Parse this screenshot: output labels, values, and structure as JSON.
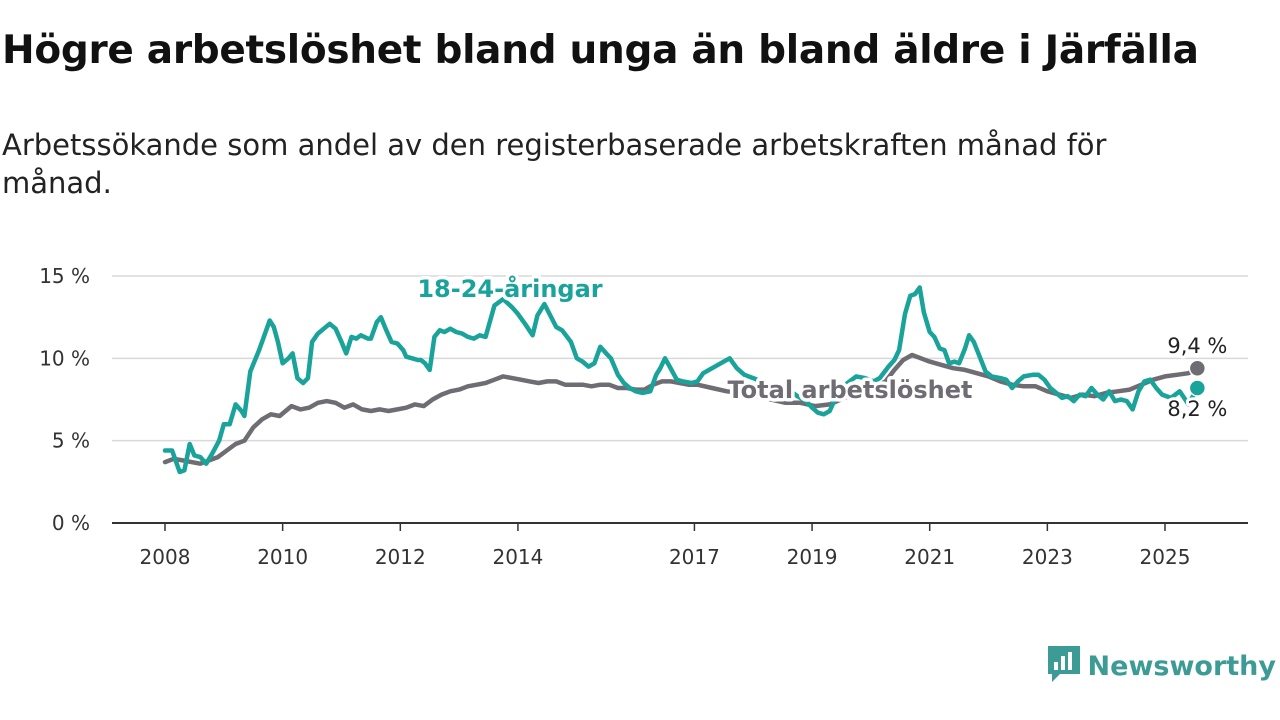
{
  "title": "Högre arbetslöshet bland unga än bland äldre i Järfälla",
  "subtitle": "Arbetssökande som andel av den registerbaserade arbetskraften månad för månad.",
  "brand": {
    "name": "Newsworthy",
    "icon": "bar-chart-logo-icon",
    "color": "#3d9b96"
  },
  "chart_data": {
    "type": "line",
    "title": "Högre arbetslöshet bland unga än bland äldre i Järfälla",
    "subtitle": "Arbetssökande som andel av den registerbaserade arbetskraften månad för månad.",
    "x_unit": "year",
    "xlim": [
      2007.1,
      2026.55
    ],
    "ylim": [
      0,
      15
    ],
    "grid": true,
    "yticks": [
      {
        "value": 0,
        "label": "0 %"
      },
      {
        "value": 5,
        "label": "5 %"
      },
      {
        "value": 10,
        "label": "10 %"
      },
      {
        "value": 15,
        "label": "15 %"
      }
    ],
    "xticks": [
      {
        "value": 2008,
        "label": "2008"
      },
      {
        "value": 2010,
        "label": "2010"
      },
      {
        "value": 2012,
        "label": "2012"
      },
      {
        "value": 2014,
        "label": "2014"
      },
      {
        "value": 2017,
        "label": "2017"
      },
      {
        "value": 2019,
        "label": "2019"
      },
      {
        "value": 2021,
        "label": "2021"
      },
      {
        "value": 2023,
        "label": "2023"
      },
      {
        "value": 2025,
        "label": "2025"
      }
    ],
    "series": [
      {
        "name": "18-24-åringar",
        "color": "#1aa39a",
        "end_label": "8,2 %",
        "points": [
          [
            2008.0,
            4.4
          ],
          [
            2008.12,
            4.4
          ],
          [
            2008.25,
            3.1
          ],
          [
            2008.33,
            3.2
          ],
          [
            2008.42,
            4.8
          ],
          [
            2008.5,
            4.1
          ],
          [
            2008.6,
            4.0
          ],
          [
            2008.7,
            3.6
          ],
          [
            2008.8,
            4.2
          ],
          [
            2008.92,
            5.0
          ],
          [
            2009.0,
            6.0
          ],
          [
            2009.1,
            6.0
          ],
          [
            2009.2,
            7.2
          ],
          [
            2009.3,
            6.8
          ],
          [
            2009.35,
            6.5
          ],
          [
            2009.45,
            9.2
          ],
          [
            2009.6,
            10.5
          ],
          [
            2009.7,
            11.5
          ],
          [
            2009.78,
            12.3
          ],
          [
            2009.85,
            11.9
          ],
          [
            2009.92,
            11.0
          ],
          [
            2010.0,
            9.7
          ],
          [
            2010.1,
            10.0
          ],
          [
            2010.17,
            10.3
          ],
          [
            2010.25,
            8.8
          ],
          [
            2010.35,
            8.5
          ],
          [
            2010.43,
            8.8
          ],
          [
            2010.5,
            11.0
          ],
          [
            2010.6,
            11.5
          ],
          [
            2010.7,
            11.8
          ],
          [
            2010.8,
            12.1
          ],
          [
            2010.9,
            11.8
          ],
          [
            2011.0,
            11.0
          ],
          [
            2011.08,
            10.3
          ],
          [
            2011.17,
            11.3
          ],
          [
            2011.25,
            11.2
          ],
          [
            2011.33,
            11.4
          ],
          [
            2011.45,
            11.2
          ],
          [
            2011.5,
            11.2
          ],
          [
            2011.6,
            12.2
          ],
          [
            2011.67,
            12.5
          ],
          [
            2011.75,
            11.8
          ],
          [
            2011.85,
            11.0
          ],
          [
            2011.95,
            10.9
          ],
          [
            2012.05,
            10.5
          ],
          [
            2012.1,
            10.1
          ],
          [
            2012.2,
            10.0
          ],
          [
            2012.3,
            9.9
          ],
          [
            2012.35,
            9.9
          ],
          [
            2012.42,
            9.7
          ],
          [
            2012.5,
            9.3
          ],
          [
            2012.58,
            11.3
          ],
          [
            2012.67,
            11.7
          ],
          [
            2012.75,
            11.6
          ],
          [
            2012.85,
            11.8
          ],
          [
            2012.95,
            11.6
          ],
          [
            2013.05,
            11.5
          ],
          [
            2013.15,
            11.3
          ],
          [
            2013.25,
            11.2
          ],
          [
            2013.35,
            11.4
          ],
          [
            2013.45,
            11.3
          ],
          [
            2013.6,
            13.2
          ],
          [
            2013.75,
            13.6
          ],
          [
            2013.9,
            13.1
          ],
          [
            2014.0,
            12.7
          ],
          [
            2014.12,
            12.1
          ],
          [
            2014.25,
            11.4
          ],
          [
            2014.33,
            12.6
          ],
          [
            2014.45,
            13.3
          ],
          [
            2014.55,
            12.6
          ],
          [
            2014.65,
            11.9
          ],
          [
            2014.75,
            11.7
          ],
          [
            2014.9,
            11.0
          ],
          [
            2015.0,
            10.0
          ],
          [
            2015.1,
            9.8
          ],
          [
            2015.2,
            9.5
          ],
          [
            2015.3,
            9.7
          ],
          [
            2015.4,
            10.7
          ],
          [
            2015.5,
            10.3
          ],
          [
            2015.58,
            10.0
          ],
          [
            2015.7,
            9.0
          ],
          [
            2015.8,
            8.5
          ],
          [
            2015.9,
            8.2
          ],
          [
            2016.0,
            8.0
          ],
          [
            2016.12,
            7.9
          ],
          [
            2016.25,
            8.0
          ],
          [
            2016.35,
            9.0
          ],
          [
            2016.42,
            9.4
          ],
          [
            2016.5,
            10.0
          ],
          [
            2016.58,
            9.5
          ],
          [
            2016.7,
            8.7
          ],
          [
            2016.8,
            8.6
          ],
          [
            2016.95,
            8.5
          ],
          [
            2017.05,
            8.6
          ],
          [
            2017.15,
            9.1
          ],
          [
            2017.3,
            9.4
          ],
          [
            2017.5,
            9.8
          ],
          [
            2017.6,
            10.0
          ],
          [
            2017.72,
            9.4
          ],
          [
            2017.85,
            9.0
          ],
          [
            2018.0,
            8.8
          ],
          [
            2018.2,
            8.5
          ],
          [
            2018.4,
            8.2
          ],
          [
            2018.6,
            8.1
          ],
          [
            2018.75,
            7.7
          ],
          [
            2018.9,
            7.4
          ],
          [
            2019.0,
            7.0
          ],
          [
            2019.1,
            6.7
          ],
          [
            2019.2,
            6.6
          ],
          [
            2019.3,
            6.8
          ],
          [
            2019.4,
            7.6
          ],
          [
            2019.5,
            8.1
          ],
          [
            2019.6,
            8.5
          ],
          [
            2019.75,
            8.9
          ],
          [
            2019.9,
            8.8
          ],
          [
            2020.05,
            8.6
          ],
          [
            2020.15,
            8.8
          ],
          [
            2020.3,
            9.5
          ],
          [
            2020.4,
            9.9
          ],
          [
            2020.48,
            10.5
          ],
          [
            2020.58,
            12.7
          ],
          [
            2020.67,
            13.8
          ],
          [
            2020.75,
            13.9
          ],
          [
            2020.83,
            14.3
          ],
          [
            2020.9,
            12.8
          ],
          [
            2021.0,
            11.6
          ],
          [
            2021.08,
            11.3
          ],
          [
            2021.17,
            10.6
          ],
          [
            2021.25,
            10.5
          ],
          [
            2021.33,
            9.7
          ],
          [
            2021.42,
            9.8
          ],
          [
            2021.5,
            9.7
          ],
          [
            2021.6,
            10.6
          ],
          [
            2021.67,
            11.4
          ],
          [
            2021.75,
            11.0
          ],
          [
            2021.85,
            10.1
          ],
          [
            2021.95,
            9.2
          ],
          [
            2022.05,
            8.9
          ],
          [
            2022.2,
            8.8
          ],
          [
            2022.3,
            8.7
          ],
          [
            2022.4,
            8.2
          ],
          [
            2022.5,
            8.6
          ],
          [
            2022.6,
            8.9
          ],
          [
            2022.75,
            9.0
          ],
          [
            2022.85,
            9.0
          ],
          [
            2022.95,
            8.7
          ],
          [
            2023.05,
            8.2
          ],
          [
            2023.15,
            7.9
          ],
          [
            2023.25,
            7.6
          ],
          [
            2023.35,
            7.7
          ],
          [
            2023.45,
            7.4
          ],
          [
            2023.55,
            7.8
          ],
          [
            2023.65,
            7.7
          ],
          [
            2023.75,
            8.2
          ],
          [
            2023.85,
            7.8
          ],
          [
            2023.95,
            7.5
          ],
          [
            2024.05,
            8.0
          ],
          [
            2024.15,
            7.4
          ],
          [
            2024.25,
            7.5
          ],
          [
            2024.35,
            7.4
          ],
          [
            2024.45,
            6.9
          ],
          [
            2024.55,
            8.0
          ],
          [
            2024.65,
            8.6
          ],
          [
            2024.75,
            8.7
          ],
          [
            2024.85,
            8.2
          ],
          [
            2024.95,
            7.8
          ],
          [
            2025.1,
            7.6
          ],
          [
            2025.25,
            8.0
          ],
          [
            2025.4,
            7.2
          ],
          [
            2025.55,
            8.2
          ]
        ]
      },
      {
        "name": "Total arbetslöshet",
        "color": "#6f6d73",
        "end_label": "9,4 %",
        "points": [
          [
            2008.0,
            3.7
          ],
          [
            2008.15,
            3.9
          ],
          [
            2008.3,
            3.8
          ],
          [
            2008.45,
            3.7
          ],
          [
            2008.6,
            3.6
          ],
          [
            2008.75,
            3.8
          ],
          [
            2008.9,
            4.0
          ],
          [
            2009.05,
            4.4
          ],
          [
            2009.2,
            4.8
          ],
          [
            2009.35,
            5.0
          ],
          [
            2009.5,
            5.8
          ],
          [
            2009.65,
            6.3
          ],
          [
            2009.8,
            6.6
          ],
          [
            2009.95,
            6.5
          ],
          [
            2010.05,
            6.8
          ],
          [
            2010.15,
            7.1
          ],
          [
            2010.3,
            6.9
          ],
          [
            2010.45,
            7.0
          ],
          [
            2010.6,
            7.3
          ],
          [
            2010.75,
            7.4
          ],
          [
            2010.9,
            7.3
          ],
          [
            2011.05,
            7.0
          ],
          [
            2011.2,
            7.2
          ],
          [
            2011.35,
            6.9
          ],
          [
            2011.5,
            6.8
          ],
          [
            2011.65,
            6.9
          ],
          [
            2011.8,
            6.8
          ],
          [
            2011.95,
            6.9
          ],
          [
            2012.1,
            7.0
          ],
          [
            2012.25,
            7.2
          ],
          [
            2012.4,
            7.1
          ],
          [
            2012.55,
            7.5
          ],
          [
            2012.7,
            7.8
          ],
          [
            2012.85,
            8.0
          ],
          [
            2013.0,
            8.1
          ],
          [
            2013.15,
            8.3
          ],
          [
            2013.3,
            8.4
          ],
          [
            2013.45,
            8.5
          ],
          [
            2013.6,
            8.7
          ],
          [
            2013.75,
            8.9
          ],
          [
            2013.9,
            8.8
          ],
          [
            2014.05,
            8.7
          ],
          [
            2014.2,
            8.6
          ],
          [
            2014.35,
            8.5
          ],
          [
            2014.5,
            8.6
          ],
          [
            2014.65,
            8.6
          ],
          [
            2014.8,
            8.4
          ],
          [
            2014.95,
            8.4
          ],
          [
            2015.1,
            8.4
          ],
          [
            2015.25,
            8.3
          ],
          [
            2015.4,
            8.4
          ],
          [
            2015.55,
            8.4
          ],
          [
            2015.7,
            8.2
          ],
          [
            2015.85,
            8.2
          ],
          [
            2016.0,
            8.1
          ],
          [
            2016.15,
            8.1
          ],
          [
            2016.3,
            8.4
          ],
          [
            2016.45,
            8.6
          ],
          [
            2016.6,
            8.6
          ],
          [
            2016.75,
            8.5
          ],
          [
            2016.9,
            8.4
          ],
          [
            2017.05,
            8.4
          ],
          [
            2017.3,
            8.2
          ],
          [
            2017.55,
            8.0
          ],
          [
            2017.8,
            7.9
          ],
          [
            2018.05,
            7.7
          ],
          [
            2018.3,
            7.5
          ],
          [
            2018.55,
            7.3
          ],
          [
            2018.8,
            7.3
          ],
          [
            2019.05,
            7.1
          ],
          [
            2019.3,
            7.2
          ],
          [
            2019.55,
            7.6
          ],
          [
            2019.8,
            8.0
          ],
          [
            2020.05,
            8.2
          ],
          [
            2020.25,
            8.6
          ],
          [
            2020.4,
            9.3
          ],
          [
            2020.55,
            9.9
          ],
          [
            2020.7,
            10.2
          ],
          [
            2020.85,
            10.0
          ],
          [
            2021.0,
            9.8
          ],
          [
            2021.2,
            9.6
          ],
          [
            2021.4,
            9.4
          ],
          [
            2021.6,
            9.3
          ],
          [
            2021.8,
            9.1
          ],
          [
            2022.0,
            8.9
          ],
          [
            2022.2,
            8.6
          ],
          [
            2022.4,
            8.4
          ],
          [
            2022.6,
            8.3
          ],
          [
            2022.8,
            8.3
          ],
          [
            2023.0,
            8.0
          ],
          [
            2023.2,
            7.8
          ],
          [
            2023.4,
            7.6
          ],
          [
            2023.6,
            7.8
          ],
          [
            2023.8,
            7.7
          ],
          [
            2024.0,
            7.9
          ],
          [
            2024.2,
            8.0
          ],
          [
            2024.4,
            8.1
          ],
          [
            2024.6,
            8.4
          ],
          [
            2024.8,
            8.7
          ],
          [
            2025.0,
            8.9
          ],
          [
            2025.2,
            9.0
          ],
          [
            2025.4,
            9.1
          ],
          [
            2025.55,
            9.4
          ]
        ]
      }
    ]
  }
}
